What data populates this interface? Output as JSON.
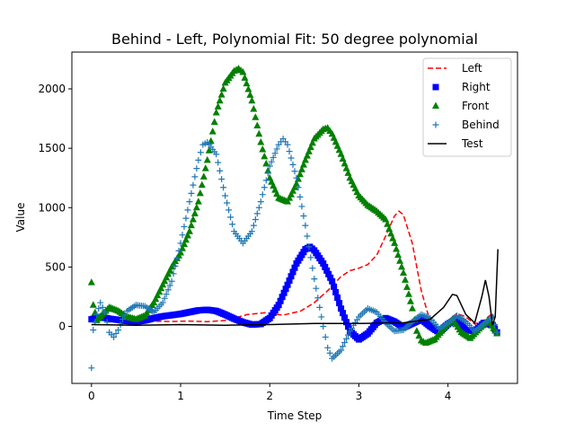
{
  "chart_data": {
    "type": "line",
    "title": "Behind - Left, Polynomial Fit: 50 degree polynomial",
    "xlabel": "Time Step",
    "ylabel": "Value",
    "xlim": [
      -0.22,
      4.78
    ],
    "ylim": [
      -480,
      2310
    ],
    "xticks": [
      0,
      1,
      2,
      3,
      4
    ],
    "xtick_labels": [
      "0",
      "1",
      "2",
      "3",
      "4"
    ],
    "yticks": [
      0,
      500,
      1000,
      1500,
      2000
    ],
    "ytick_labels": [
      "0",
      "500",
      "1000",
      "1500",
      "2000"
    ],
    "grid": false,
    "legend_position": "top-right",
    "series": [
      {
        "name": "Left",
        "style": "dashed-line",
        "color": "#ff0000",
        "points": [
          [
            0,
            80
          ],
          [
            0.3,
            60
          ],
          [
            0.6,
            45
          ],
          [
            0.9,
            42
          ],
          [
            1.1,
            45
          ],
          [
            1.3,
            40
          ],
          [
            1.5,
            50
          ],
          [
            1.75,
            100
          ],
          [
            1.95,
            115
          ],
          [
            2.15,
            95
          ],
          [
            2.35,
            130
          ],
          [
            2.5,
            200
          ],
          [
            2.65,
            300
          ],
          [
            2.8,
            420
          ],
          [
            2.9,
            470
          ],
          [
            3.0,
            490
          ],
          [
            3.1,
            520
          ],
          [
            3.2,
            600
          ],
          [
            3.3,
            760
          ],
          [
            3.4,
            930
          ],
          [
            3.45,
            970
          ],
          [
            3.5,
            940
          ],
          [
            3.6,
            700
          ],
          [
            3.7,
            300
          ],
          [
            3.8,
            40
          ],
          [
            3.9,
            -15
          ],
          [
            4.0,
            50
          ],
          [
            4.1,
            110
          ],
          [
            4.2,
            80
          ],
          [
            4.3,
            20
          ],
          [
            4.4,
            50
          ],
          [
            4.5,
            110
          ],
          [
            4.55,
            -20
          ]
        ]
      },
      {
        "name": "Right",
        "style": "square-markers",
        "color": "#0000ff",
        "points": [
          [
            0,
            60
          ],
          [
            0.1,
            80
          ],
          [
            0.2,
            65
          ],
          [
            0.3,
            55
          ],
          [
            0.4,
            45
          ],
          [
            0.5,
            40
          ],
          [
            0.6,
            50
          ],
          [
            0.7,
            70
          ],
          [
            0.8,
            85
          ],
          [
            0.9,
            95
          ],
          [
            1.0,
            105
          ],
          [
            1.1,
            120
          ],
          [
            1.2,
            135
          ],
          [
            1.3,
            140
          ],
          [
            1.4,
            130
          ],
          [
            1.5,
            100
          ],
          [
            1.6,
            65
          ],
          [
            1.7,
            35
          ],
          [
            1.8,
            15
          ],
          [
            1.9,
            20
          ],
          [
            2.0,
            70
          ],
          [
            2.1,
            180
          ],
          [
            2.2,
            350
          ],
          [
            2.3,
            530
          ],
          [
            2.4,
            650
          ],
          [
            2.45,
            670
          ],
          [
            2.5,
            640
          ],
          [
            2.6,
            530
          ],
          [
            2.7,
            380
          ],
          [
            2.8,
            150
          ],
          [
            2.9,
            -40
          ],
          [
            3.0,
            -110
          ],
          [
            3.1,
            -60
          ],
          [
            3.2,
            30
          ],
          [
            3.3,
            70
          ],
          [
            3.4,
            40
          ],
          [
            3.5,
            -10
          ],
          [
            3.6,
            25
          ],
          [
            3.7,
            60
          ],
          [
            3.8,
            0
          ],
          [
            3.9,
            -50
          ],
          [
            4.0,
            20
          ],
          [
            4.1,
            60
          ],
          [
            4.2,
            -30
          ],
          [
            4.3,
            -40
          ],
          [
            4.4,
            30
          ],
          [
            4.5,
            10
          ],
          [
            4.55,
            -50
          ]
        ]
      },
      {
        "name": "Front",
        "style": "triangle-markers",
        "color": "#008000",
        "points": [
          [
            0,
            370
          ],
          [
            0.02,
            180
          ],
          [
            0.06,
            50
          ],
          [
            0.12,
            100
          ],
          [
            0.2,
            160
          ],
          [
            0.3,
            130
          ],
          [
            0.4,
            80
          ],
          [
            0.5,
            60
          ],
          [
            0.6,
            90
          ],
          [
            0.7,
            200
          ],
          [
            0.8,
            350
          ],
          [
            0.9,
            500
          ],
          [
            1.0,
            620
          ],
          [
            1.1,
            800
          ],
          [
            1.2,
            1050
          ],
          [
            1.3,
            1400
          ],
          [
            1.4,
            1800
          ],
          [
            1.5,
            2050
          ],
          [
            1.6,
            2150
          ],
          [
            1.65,
            2170
          ],
          [
            1.7,
            2140
          ],
          [
            1.8,
            1900
          ],
          [
            1.9,
            1550
          ],
          [
            2.0,
            1250
          ],
          [
            2.1,
            1080
          ],
          [
            2.2,
            1050
          ],
          [
            2.3,
            1200
          ],
          [
            2.4,
            1400
          ],
          [
            2.5,
            1580
          ],
          [
            2.6,
            1660
          ],
          [
            2.65,
            1670
          ],
          [
            2.7,
            1620
          ],
          [
            2.8,
            1450
          ],
          [
            2.9,
            1250
          ],
          [
            3.0,
            1100
          ],
          [
            3.1,
            1020
          ],
          [
            3.2,
            970
          ],
          [
            3.3,
            900
          ],
          [
            3.4,
            700
          ],
          [
            3.5,
            450
          ],
          [
            3.6,
            150
          ],
          [
            3.65,
            -40
          ],
          [
            3.7,
            -120
          ],
          [
            3.75,
            -140
          ],
          [
            3.85,
            -110
          ],
          [
            3.95,
            -20
          ],
          [
            4.05,
            60
          ],
          [
            4.15,
            -50
          ],
          [
            4.25,
            -100
          ],
          [
            4.35,
            -20
          ],
          [
            4.45,
            50
          ],
          [
            4.55,
            -60
          ]
        ]
      },
      {
        "name": "Behind",
        "style": "plus-markers",
        "color": "#1f77b4",
        "points": [
          [
            0,
            -350
          ],
          [
            0.02,
            -30
          ],
          [
            0.06,
            100
          ],
          [
            0.1,
            200
          ],
          [
            0.15,
            120
          ],
          [
            0.2,
            -50
          ],
          [
            0.25,
            -90
          ],
          [
            0.3,
            -30
          ],
          [
            0.35,
            60
          ],
          [
            0.4,
            130
          ],
          [
            0.5,
            180
          ],
          [
            0.6,
            170
          ],
          [
            0.7,
            120
          ],
          [
            0.8,
            200
          ],
          [
            0.9,
            380
          ],
          [
            1.0,
            700
          ],
          [
            1.1,
            1050
          ],
          [
            1.2,
            1400
          ],
          [
            1.25,
            1530
          ],
          [
            1.3,
            1550
          ],
          [
            1.4,
            1450
          ],
          [
            1.5,
            1100
          ],
          [
            1.6,
            800
          ],
          [
            1.7,
            700
          ],
          [
            1.8,
            800
          ],
          [
            1.9,
            1050
          ],
          [
            2.0,
            1350
          ],
          [
            2.1,
            1530
          ],
          [
            2.15,
            1580
          ],
          [
            2.2,
            1530
          ],
          [
            2.3,
            1250
          ],
          [
            2.4,
            850
          ],
          [
            2.5,
            400
          ],
          [
            2.6,
            0
          ],
          [
            2.65,
            -180
          ],
          [
            2.7,
            -270
          ],
          [
            2.8,
            -200
          ],
          [
            2.9,
            -40
          ],
          [
            3.0,
            80
          ],
          [
            3.1,
            150
          ],
          [
            3.2,
            120
          ],
          [
            3.3,
            30
          ],
          [
            3.4,
            -40
          ],
          [
            3.5,
            -30
          ],
          [
            3.6,
            40
          ],
          [
            3.7,
            100
          ],
          [
            3.8,
            70
          ],
          [
            3.9,
            -20
          ],
          [
            4.0,
            30
          ],
          [
            4.1,
            90
          ],
          [
            4.2,
            40
          ],
          [
            4.3,
            -40
          ],
          [
            4.4,
            20
          ],
          [
            4.5,
            80
          ],
          [
            4.55,
            -50
          ]
        ]
      },
      {
        "name": "Test",
        "style": "solid-line",
        "color": "#000000",
        "points": [
          [
            0,
            15
          ],
          [
            0.5,
            10
          ],
          [
            1.0,
            15
          ],
          [
            1.5,
            10
          ],
          [
            2.0,
            15
          ],
          [
            2.5,
            25
          ],
          [
            3.0,
            25
          ],
          [
            3.5,
            30
          ],
          [
            3.8,
            60
          ],
          [
            3.95,
            160
          ],
          [
            4.05,
            270
          ],
          [
            4.1,
            260
          ],
          [
            4.2,
            100
          ],
          [
            4.3,
            30
          ],
          [
            4.38,
            250
          ],
          [
            4.42,
            390
          ],
          [
            4.46,
            250
          ],
          [
            4.5,
            10
          ],
          [
            4.53,
            80
          ],
          [
            4.56,
            650
          ]
        ]
      }
    ]
  }
}
